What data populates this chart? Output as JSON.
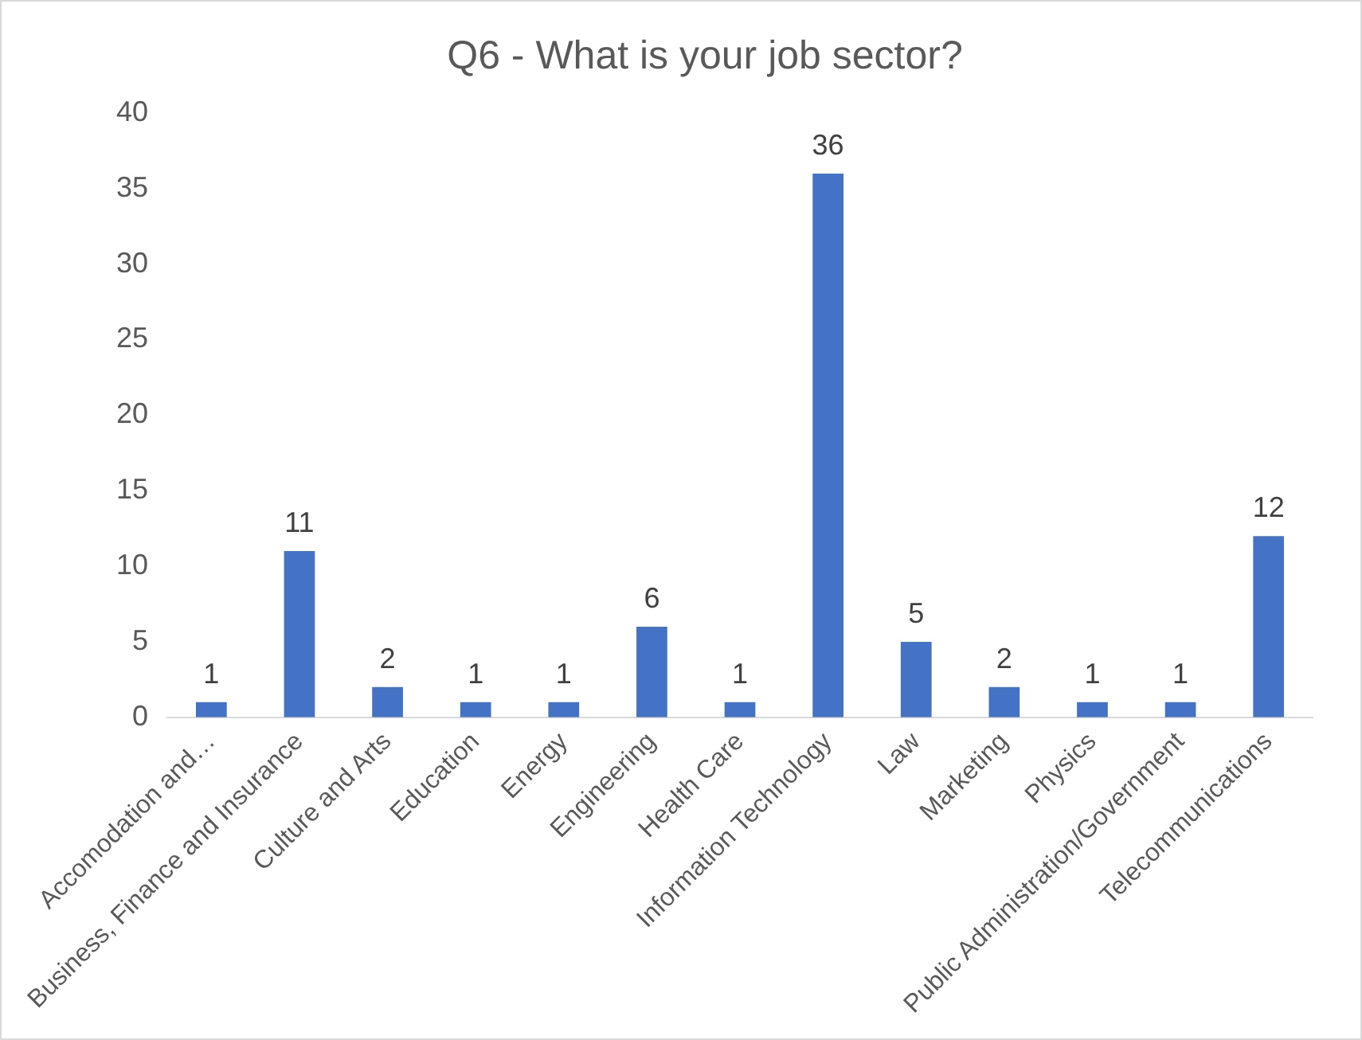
{
  "chart_data": {
    "type": "bar",
    "title": "Q6 - What is your job sector?",
    "categories": [
      "Accomodation and…",
      "Business, Finance and Insurance",
      "Culture and Arts",
      "Education",
      "Energy",
      "Engineering",
      "Health Care",
      "Information Technology",
      "Law",
      "Marketing",
      "Physics",
      "Public Administration/Government",
      "Telecommunications"
    ],
    "values": [
      1,
      11,
      2,
      1,
      1,
      6,
      1,
      36,
      5,
      2,
      1,
      1,
      12
    ],
    "color": "#4472c4",
    "ylim": [
      0,
      40
    ],
    "yticks": [
      0,
      5,
      10,
      15,
      20,
      25,
      30,
      35,
      40
    ],
    "grid": false,
    "legend": false,
    "data_labels": true
  }
}
